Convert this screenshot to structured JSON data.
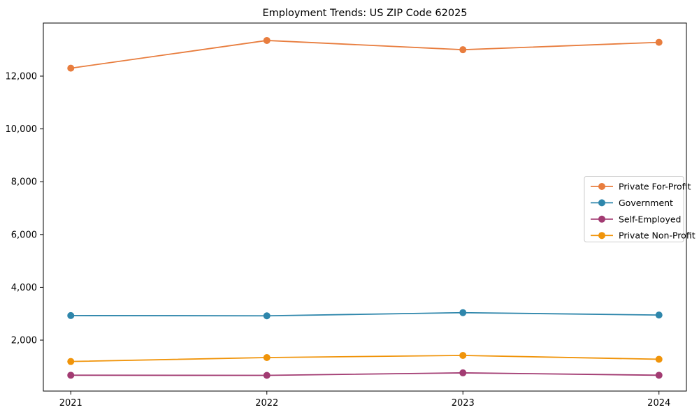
{
  "chart_data": {
    "type": "line",
    "title": "Employment Trends: US ZIP Code 62025",
    "x": [
      2021,
      2022,
      2023,
      2024
    ],
    "x_tick_labels": [
      "2021",
      "2022",
      "2023",
      "2024"
    ],
    "series": [
      {
        "name": "Private For-Profit",
        "color": "#e87d3e",
        "values": [
          12300,
          13350,
          13000,
          13280
        ]
      },
      {
        "name": "Government",
        "color": "#2e86ab",
        "values": [
          2930,
          2920,
          3040,
          2950
        ]
      },
      {
        "name": "Self-Employed",
        "color": "#a23b72",
        "values": [
          670,
          665,
          760,
          670
        ]
      },
      {
        "name": "Private Non-Profit",
        "color": "#f0940a",
        "values": [
          1190,
          1340,
          1420,
          1275
        ]
      }
    ],
    "xlabel": "",
    "ylabel": "",
    "y_ticks": [
      2000,
      4000,
      6000,
      8000,
      10000,
      12000
    ],
    "y_tick_labels": [
      "2,000",
      "4,000",
      "6,000",
      "8,000",
      "10,000",
      "12,000"
    ],
    "xlim": [
      2020.86,
      2024.14
    ],
    "ylim": [
      70,
      14010
    ],
    "grid": false,
    "marker": "o",
    "legend_position": "center right",
    "axis_color": "#000000",
    "legend_border_color": "#cccccc",
    "legend_bg_color": "#ffffff"
  }
}
